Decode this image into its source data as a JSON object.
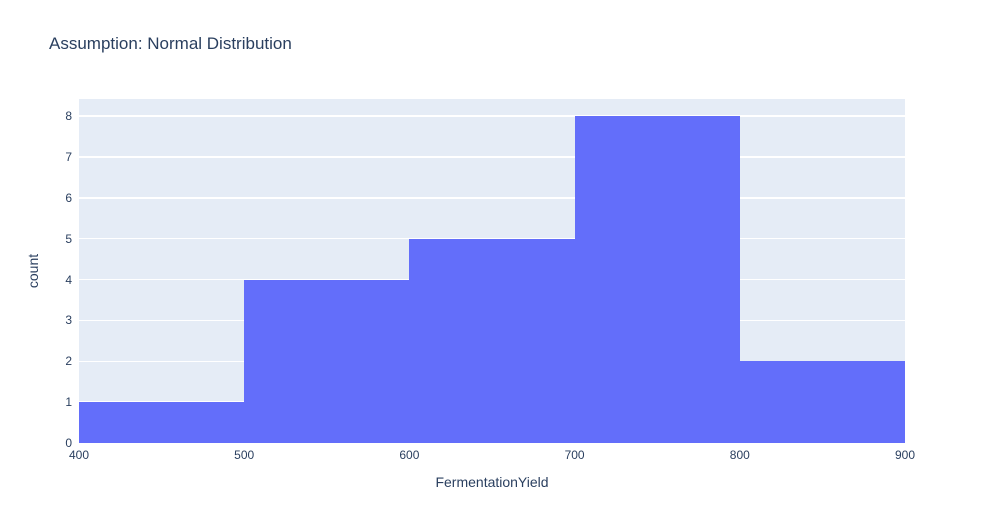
{
  "title": "Assumption: Normal Distribution",
  "chart_data": {
    "type": "bar",
    "subtype": "histogram",
    "title": "Assumption: Normal Distribution",
    "xlabel": "FermentationYield",
    "ylabel": "count",
    "bin_edges": [
      400,
      500,
      600,
      700,
      800,
      900
    ],
    "values": [
      1,
      4,
      5,
      8,
      2
    ],
    "xlim": [
      400,
      900
    ],
    "ylim": [
      0,
      8.42
    ],
    "xticks": [
      400,
      500,
      600,
      700,
      800,
      900
    ],
    "yticks": [
      0,
      1,
      2,
      3,
      4,
      5,
      6,
      7,
      8
    ],
    "grid": true,
    "legend": false,
    "colors": {
      "bar": "#636efa",
      "plot_background": "#e5ecf6",
      "gridline": "#ffffff",
      "text": "#2a3f5f",
      "page_background": "#ffffff"
    }
  }
}
